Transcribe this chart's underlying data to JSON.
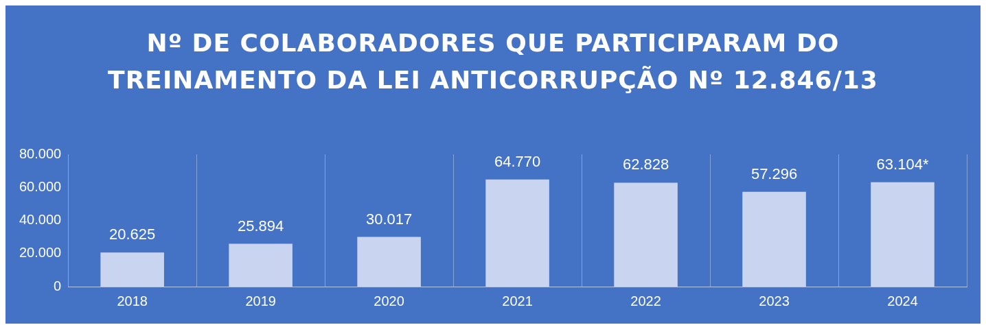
{
  "chart_data": {
    "type": "bar",
    "title": "Nº DE COLABORADORES QUE PARTICIPARAM DO TREINAMENTO DA LEI ANTICORRUPÇÃO Nº 12.846/13",
    "categories": [
      "2018",
      "2019",
      "2020",
      "2021",
      "2022",
      "2023",
      "2024"
    ],
    "values": [
      20625,
      25894,
      30017,
      64770,
      62828,
      57296,
      63104
    ],
    "value_labels": [
      "20.625",
      "25.894",
      "30.017",
      "64.770",
      "62.828",
      "57.296",
      "63.104*"
    ],
    "color": "#c9d5f0",
    "ylim": [
      0,
      80000
    ],
    "yticks": [
      0,
      {
        "value": 20000,
        "label": "20.000"
      },
      {
        "value": 40000,
        "label": "40.000"
      },
      {
        "value": 60000,
        "label": "60.000"
      },
      {
        "value": 80000,
        "label": "80.000"
      }
    ],
    "grid": "x",
    "legend": false
  }
}
